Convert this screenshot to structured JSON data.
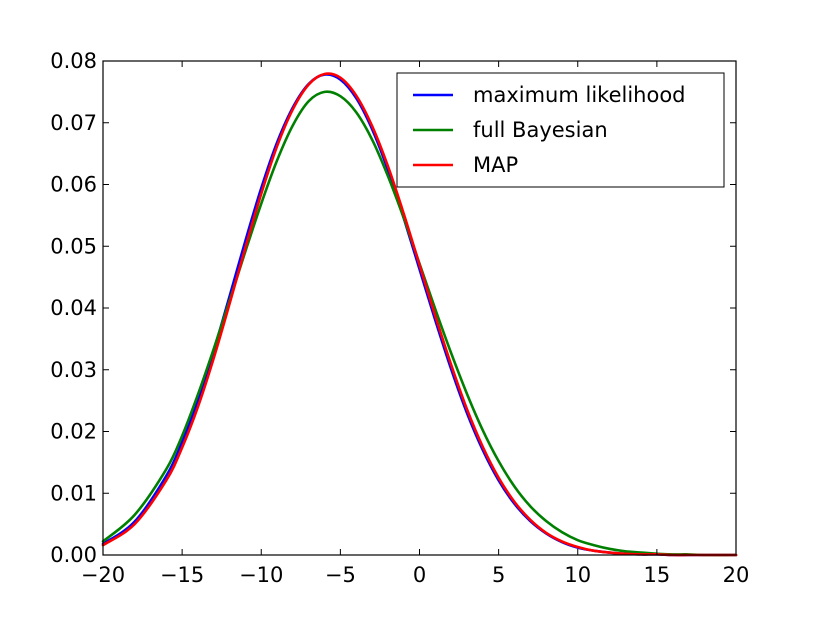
{
  "chart_data": {
    "type": "line",
    "title": "",
    "xlabel": "",
    "ylabel": "",
    "xlim": [
      -20,
      20
    ],
    "ylim": [
      0.0,
      0.08
    ],
    "grid": false,
    "legend_position": "top-right",
    "x_ticks": [
      "−20",
      "−15",
      "−10",
      "−5",
      "0",
      "5",
      "10",
      "15",
      "20"
    ],
    "x_tick_values": [
      -20,
      -15,
      -10,
      -5,
      0,
      5,
      10,
      15,
      20
    ],
    "y_ticks": [
      "0.00",
      "0.01",
      "0.02",
      "0.03",
      "0.04",
      "0.05",
      "0.06",
      "0.07",
      "0.08"
    ],
    "y_tick_values": [
      0.0,
      0.01,
      0.02,
      0.03,
      0.04,
      0.05,
      0.06,
      0.07,
      0.08
    ],
    "series": [
      {
        "name": "maximum likelihood",
        "color": "#0000ff",
        "x": [
          -20,
          -18,
          -16,
          -15,
          -14,
          -13,
          -12,
          -11,
          -10,
          -9,
          -8,
          -7,
          -6,
          -5,
          -4,
          -3,
          -2,
          -1,
          0,
          1,
          2,
          3,
          4,
          5,
          6,
          7,
          8,
          9,
          10,
          11,
          12,
          13,
          14,
          15,
          16,
          17,
          18,
          20
        ],
        "y": [
          0.0018,
          0.0054,
          0.0128,
          0.0183,
          0.0251,
          0.0331,
          0.0419,
          0.0509,
          0.0594,
          0.0668,
          0.0725,
          0.0763,
          0.0778,
          0.077,
          0.074,
          0.069,
          0.0624,
          0.0546,
          0.0463,
          0.038,
          0.0301,
          0.023,
          0.017,
          0.0121,
          0.0083,
          0.0055,
          0.0035,
          0.0021,
          0.0012,
          0.0007,
          0.0004,
          0.0002,
          0.0001,
          0.0001,
          0.0,
          0.0,
          0.0,
          0.0
        ]
      },
      {
        "name": "full Bayesian",
        "color": "#008000",
        "x": [
          -20,
          -18,
          -16,
          -15,
          -14,
          -13,
          -12,
          -11,
          -10,
          -9,
          -8,
          -7,
          -6,
          -5,
          -4,
          -3,
          -2,
          -1,
          0,
          1,
          2,
          3,
          4,
          5,
          6,
          7,
          8,
          9,
          10,
          11,
          12,
          13,
          14,
          15,
          16,
          17,
          18,
          20
        ],
        "y": [
          0.0022,
          0.0065,
          0.0139,
          0.0193,
          0.026,
          0.0334,
          0.0412,
          0.0492,
          0.0569,
          0.0639,
          0.0696,
          0.0735,
          0.075,
          0.0743,
          0.0717,
          0.0673,
          0.0614,
          0.0546,
          0.0472,
          0.0398,
          0.0327,
          0.0261,
          0.0202,
          0.0152,
          0.0111,
          0.0079,
          0.0055,
          0.0037,
          0.0024,
          0.0016,
          0.001,
          0.0006,
          0.0004,
          0.0002,
          0.0001,
          0.0001,
          0.0,
          0.0
        ]
      },
      {
        "name": "MAP",
        "color": "#ff0000",
        "x": [
          -20,
          -18,
          -16,
          -15,
          -14,
          -13,
          -12,
          -11,
          -10,
          -9,
          -8,
          -7,
          -6,
          -5,
          -4,
          -3,
          -2,
          -1,
          0,
          1,
          2,
          3,
          4,
          5,
          6,
          7,
          8,
          9,
          10,
          11,
          12,
          13,
          14,
          15,
          16,
          17,
          18,
          20
        ],
        "y": [
          0.0016,
          0.005,
          0.0121,
          0.0174,
          0.024,
          0.0319,
          0.0407,
          0.0498,
          0.0585,
          0.0662,
          0.0722,
          0.0762,
          0.0779,
          0.0773,
          0.0744,
          0.0695,
          0.063,
          0.0553,
          0.047,
          0.0387,
          0.0308,
          0.0236,
          0.0175,
          0.0125,
          0.0086,
          0.0057,
          0.0036,
          0.0022,
          0.0013,
          0.0007,
          0.0004,
          0.0002,
          0.0001,
          0.0001,
          0.0,
          0.0,
          0.0,
          0.0
        ]
      }
    ]
  }
}
